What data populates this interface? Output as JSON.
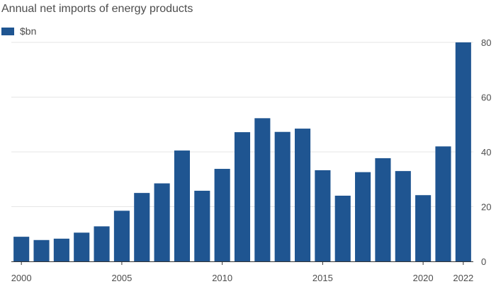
{
  "chart_data": {
    "type": "bar",
    "title": "Annual net imports of energy products",
    "legend": {
      "label": "$bn",
      "color": "#1f5591",
      "placement": "top-left"
    },
    "categories": [
      "2000",
      "2001",
      "2002",
      "2003",
      "2004",
      "2005",
      "2006",
      "2007",
      "2008",
      "2009",
      "2010",
      "2011",
      "2012",
      "2013",
      "2014",
      "2015",
      "2016",
      "2017",
      "2018",
      "2019",
      "2020",
      "2021",
      "2022"
    ],
    "series": [
      {
        "name": "$bn",
        "values": [
          9,
          7.8,
          8.3,
          10.5,
          12.8,
          18.5,
          25,
          28.5,
          40.5,
          25.8,
          33.8,
          47.2,
          52.3,
          47.3,
          48.5,
          33.3,
          24,
          32.6,
          37.7,
          33,
          24.2,
          42,
          80
        ]
      }
    ],
    "x_tick_labels": [
      "2000",
      "2005",
      "2010",
      "2015",
      "2020",
      "2022"
    ],
    "y_ticks": [
      0,
      20,
      40,
      60,
      80
    ],
    "ylim": [
      0,
      80
    ],
    "y_axis_side": "right",
    "grid": true,
    "bar_color": "#1f5591",
    "grid_color": "#e6e6e6"
  }
}
